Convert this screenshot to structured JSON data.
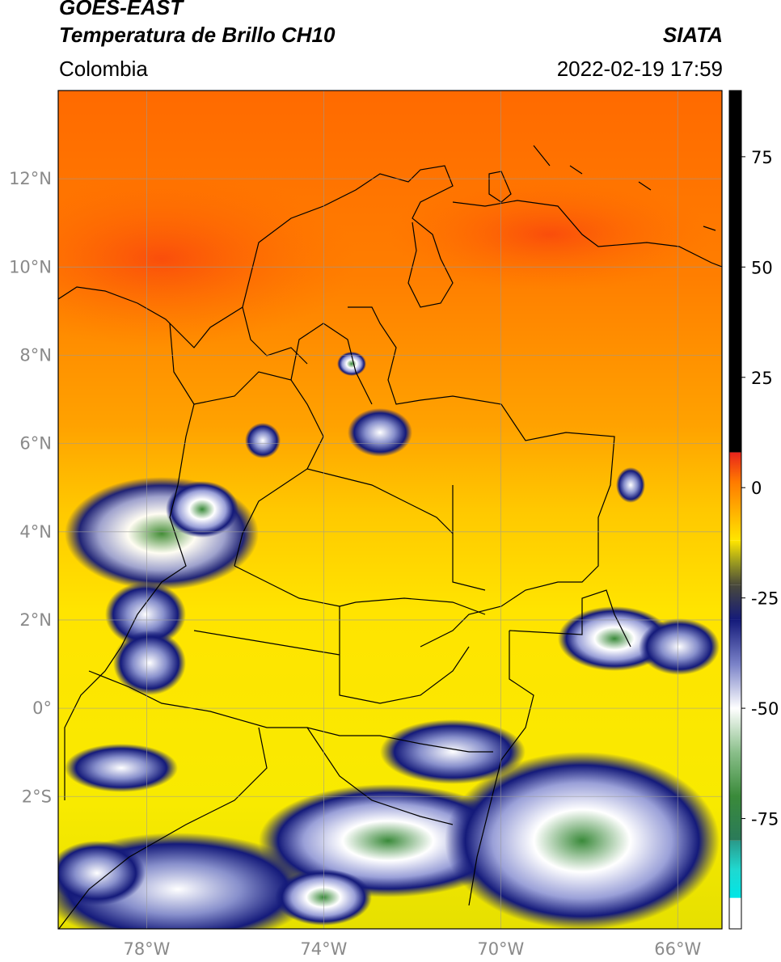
{
  "header": {
    "satellite": "GOES-EAST",
    "product": "Temperatura de Brillo CH10",
    "region": "Colombia",
    "source": "SIATA",
    "datetime": "2022-02-19 17:59"
  },
  "map": {
    "lon_range": [
      -80,
      -65
    ],
    "lat_range": [
      -5,
      14
    ],
    "lat_ticks": [
      {
        "value": 12,
        "label": "12°N"
      },
      {
        "value": 10,
        "label": "10°N"
      },
      {
        "value": 8,
        "label": "8°N"
      },
      {
        "value": 6,
        "label": "6°N"
      },
      {
        "value": 4,
        "label": "4°N"
      },
      {
        "value": 2,
        "label": "2°N"
      },
      {
        "value": 0,
        "label": "0°"
      },
      {
        "value": -2,
        "label": "2°S"
      }
    ],
    "lon_ticks": [
      {
        "value": -78,
        "label": "78°W"
      },
      {
        "value": -74,
        "label": "74°W"
      },
      {
        "value": -70,
        "label": "70°W"
      },
      {
        "value": -66,
        "label": "66°W"
      }
    ],
    "gridlines": true
  },
  "colorbar": {
    "range": [
      -100,
      90
    ],
    "ticks": [
      {
        "value": 75,
        "label": "75"
      },
      {
        "value": 50,
        "label": "50"
      },
      {
        "value": 25,
        "label": "25"
      },
      {
        "value": 0,
        "label": "0"
      },
      {
        "value": -25,
        "label": "-25"
      },
      {
        "value": -50,
        "label": "-50"
      },
      {
        "value": -75,
        "label": "-75"
      }
    ],
    "colors": {
      "black": "#000000",
      "red": "#e8241c",
      "orange": "#ff7a00",
      "yellow": "#ffe600",
      "olive": "#9a9a20",
      "navy": "#141a7a",
      "white": "#ffffff",
      "green": "#3a8a3a",
      "cyan": "#20d8d0"
    }
  }
}
